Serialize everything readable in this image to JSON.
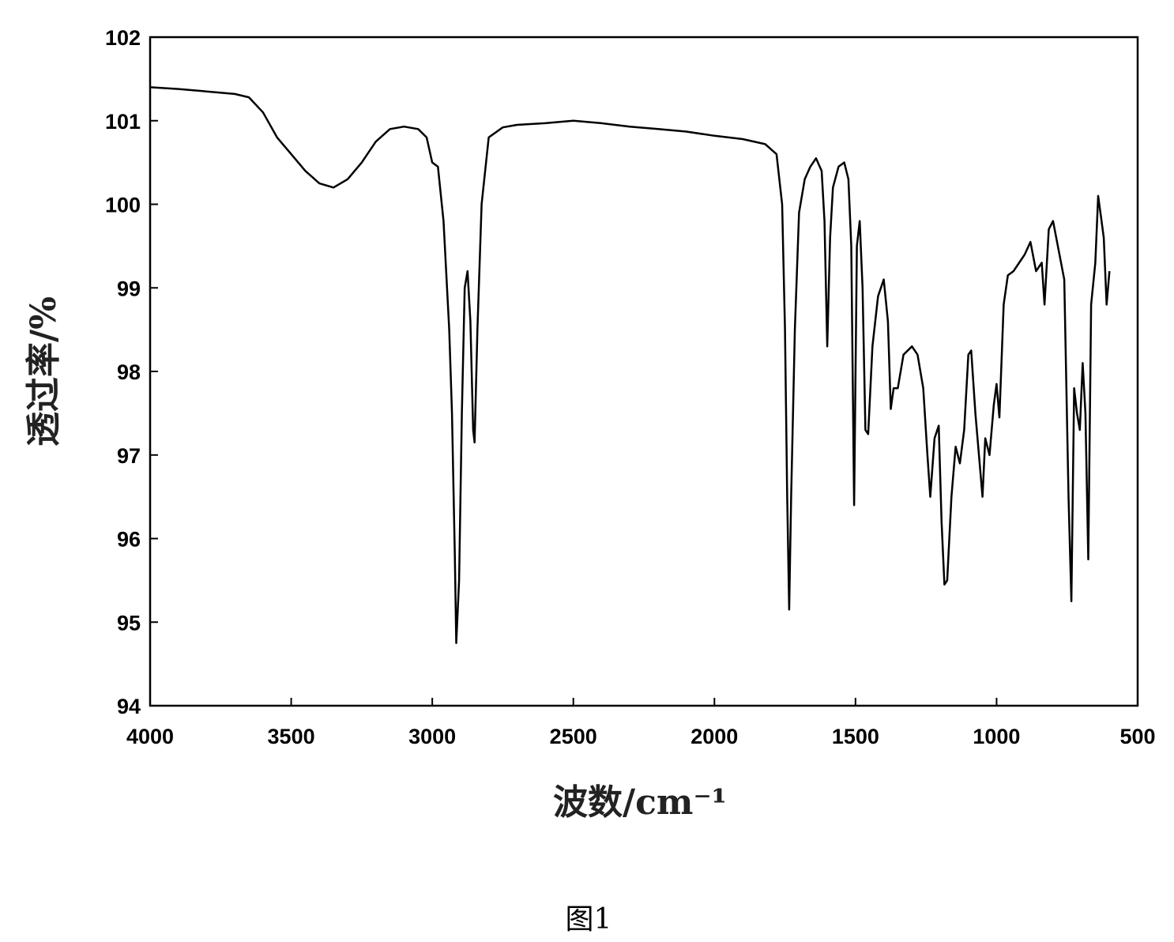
{
  "chart_data": {
    "type": "line",
    "x_label": "波数/cm⁻¹",
    "y_label": "透过率/%",
    "caption": "图1",
    "xlim": [
      4000,
      500
    ],
    "xticks": [
      4000,
      3500,
      3000,
      2500,
      2000,
      1500,
      1000,
      500
    ],
    "ylim": [
      94,
      102
    ],
    "yticks": [
      94,
      95,
      96,
      97,
      98,
      99,
      100,
      101,
      102
    ],
    "x": [
      4000,
      3900,
      3800,
      3700,
      3650,
      3600,
      3550,
      3500,
      3450,
      3400,
      3350,
      3300,
      3250,
      3200,
      3150,
      3100,
      3050,
      3020,
      3000,
      2980,
      2960,
      2940,
      2930,
      2920,
      2915,
      2905,
      2895,
      2885,
      2875,
      2865,
      2855,
      2850,
      2840,
      2825,
      2800,
      2750,
      2700,
      2600,
      2500,
      2400,
      2300,
      2200,
      2100,
      2000,
      1900,
      1820,
      1780,
      1760,
      1750,
      1742,
      1735,
      1728,
      1715,
      1700,
      1680,
      1660,
      1640,
      1620,
      1610,
      1600,
      1590,
      1580,
      1560,
      1540,
      1525,
      1515,
      1505,
      1495,
      1485,
      1475,
      1465,
      1455,
      1440,
      1420,
      1400,
      1385,
      1375,
      1365,
      1350,
      1330,
      1300,
      1280,
      1260,
      1245,
      1235,
      1220,
      1205,
      1195,
      1185,
      1175,
      1160,
      1145,
      1130,
      1115,
      1100,
      1090,
      1075,
      1060,
      1050,
      1040,
      1025,
      1010,
      1000,
      990,
      975,
      960,
      940,
      920,
      900,
      880,
      860,
      840,
      830,
      815,
      800,
      780,
      760,
      745,
      735,
      725,
      715,
      705,
      695,
      685,
      675,
      665,
      650,
      640,
      630,
      620,
      610,
      600
    ],
    "series": [
      {
        "color": "#000000",
        "values": [
          101.4,
          101.38,
          101.35,
          101.32,
          101.28,
          101.1,
          100.8,
          100.6,
          100.4,
          100.25,
          100.2,
          100.3,
          100.5,
          100.75,
          100.9,
          100.93,
          100.9,
          100.8,
          100.5,
          100.45,
          99.8,
          98.5,
          97.5,
          95.8,
          94.75,
          95.5,
          97.5,
          99.0,
          99.2,
          98.6,
          97.3,
          97.15,
          98.5,
          100.0,
          100.8,
          100.92,
          100.95,
          100.97,
          101.0,
          100.97,
          100.93,
          100.9,
          100.87,
          100.82,
          100.78,
          100.72,
          100.6,
          100.0,
          98.5,
          96.5,
          95.15,
          96.5,
          98.5,
          99.9,
          100.3,
          100.45,
          100.55,
          100.4,
          99.8,
          98.3,
          99.6,
          100.2,
          100.45,
          100.5,
          100.3,
          99.5,
          96.4,
          99.5,
          99.8,
          99.0,
          97.3,
          97.25,
          98.3,
          98.9,
          99.1,
          98.6,
          97.55,
          97.8,
          97.8,
          98.2,
          98.3,
          98.2,
          97.8,
          97.0,
          96.5,
          97.2,
          97.35,
          96.2,
          95.45,
          95.5,
          96.5,
          97.1,
          96.9,
          97.3,
          98.2,
          98.25,
          97.5,
          96.9,
          96.5,
          97.2,
          97.0,
          97.6,
          97.85,
          97.45,
          98.8,
          99.15,
          99.2,
          99.3,
          99.4,
          99.55,
          99.2,
          99.3,
          98.8,
          99.7,
          99.8,
          99.45,
          99.1,
          96.5,
          95.25,
          97.8,
          97.5,
          97.3,
          98.1,
          97.5,
          95.75,
          98.8,
          99.3,
          100.1,
          99.85,
          99.6,
          98.8,
          99.2
        ]
      }
    ]
  }
}
